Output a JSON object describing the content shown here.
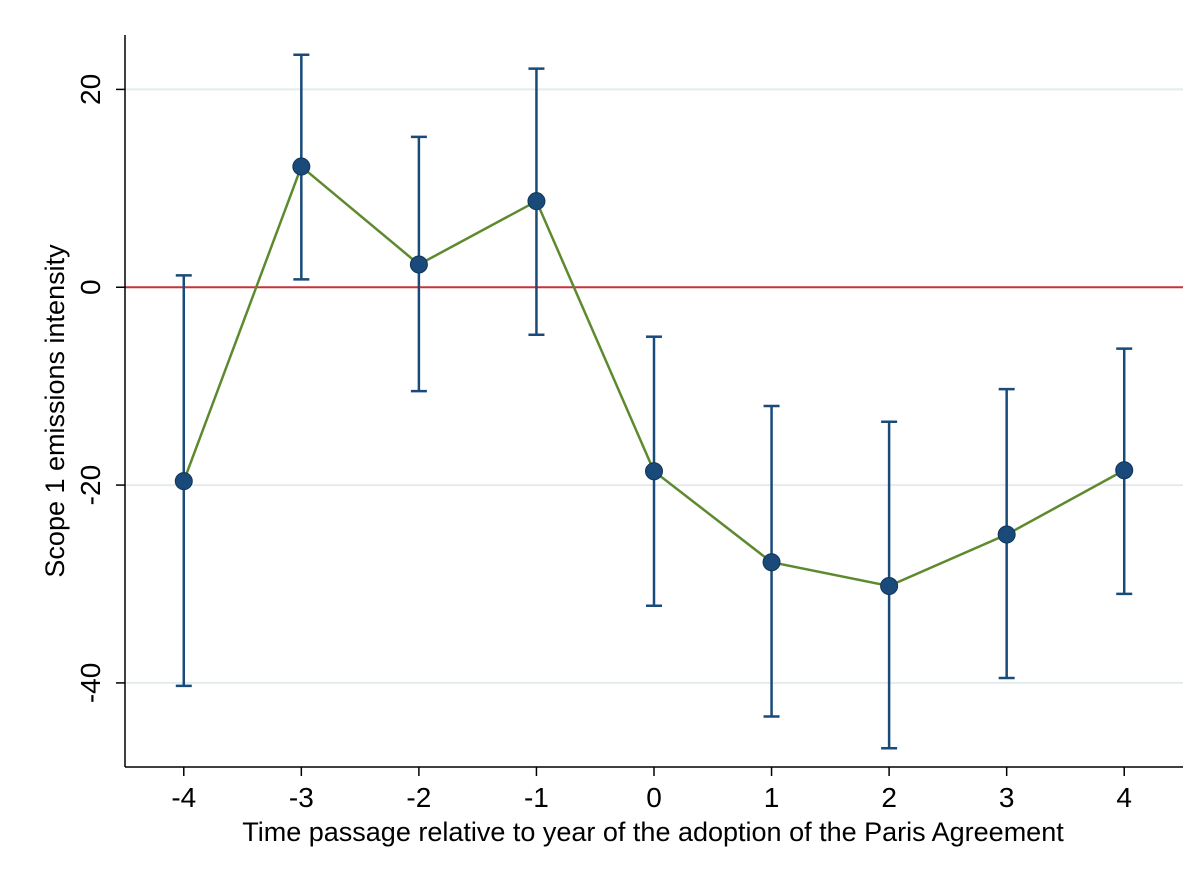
{
  "chart_data": {
    "type": "scatter",
    "title": "",
    "xlabel": "Time passage relative to year of the adoption of the Paris Agreement",
    "ylabel": "Scope 1 emissions intensity",
    "xlim": [
      -4.5,
      4.5
    ],
    "ylim": [
      -48.5,
      25.5
    ],
    "x_ticks": [
      -4,
      -3,
      -2,
      -1,
      0,
      1,
      2,
      3,
      4
    ],
    "x_tick_labels": [
      "-4",
      "-3",
      "-2",
      "-1",
      "0",
      "1",
      "2",
      "3",
      "4"
    ],
    "y_ticks": [
      -40,
      -20,
      0,
      20
    ],
    "y_tick_labels": [
      "-40",
      "-20",
      "0",
      "20"
    ],
    "grid": "horizontal",
    "reference_line": {
      "y": 0,
      "color": "#c8323c"
    },
    "series": [
      {
        "x": [
          -4,
          -3,
          -2,
          -1,
          0,
          1,
          2,
          3,
          4
        ],
        "values": [
          -19.6,
          12.2,
          2.3,
          8.7,
          -18.6,
          -27.8,
          -30.2,
          -25.0,
          -18.5
        ],
        "ci_lower": [
          -40.3,
          0.8,
          -10.5,
          -4.8,
          -32.2,
          -43.4,
          -46.6,
          -39.5,
          -31.0
        ],
        "ci_upper": [
          1.2,
          23.5,
          15.2,
          22.1,
          -5.0,
          -12.0,
          -13.6,
          -10.3,
          -6.2
        ],
        "line_color": "#5e8a2f",
        "marker_color": "#1a4a7a",
        "errorbar_color": "#1a4a7a"
      }
    ]
  }
}
